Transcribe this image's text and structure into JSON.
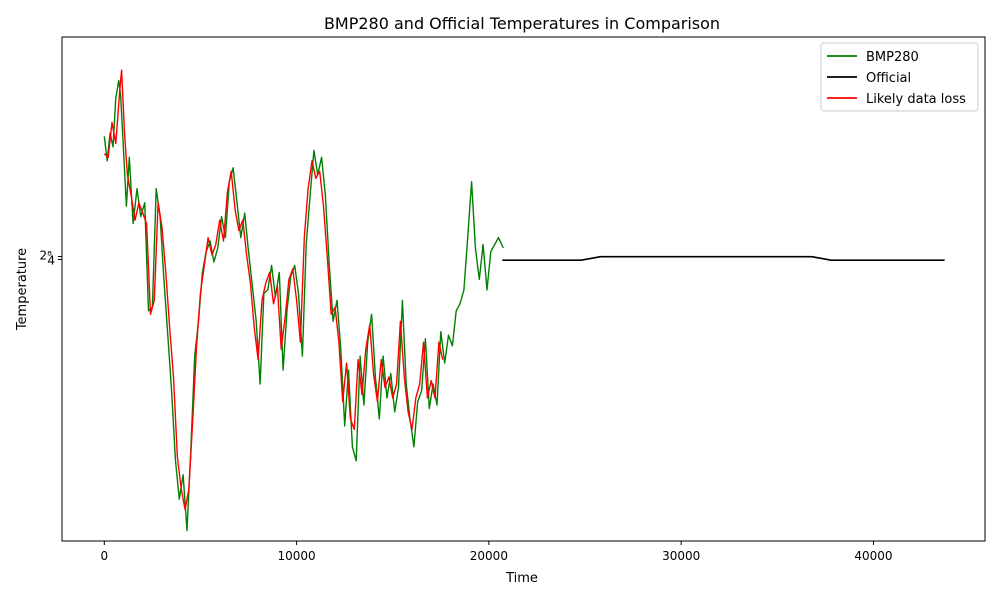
{
  "chart_data": {
    "type": "line",
    "title": "BMP280 and Official Temperatures in Comparison",
    "xlabel": "Time",
    "ylabel": "Temperature",
    "xlim": [
      -2200,
      45800
    ],
    "ylim": [
      -8.1,
      6.35
    ],
    "x_ticks": [
      0,
      10000,
      20000,
      30000,
      40000
    ],
    "x_tick_labels": [
      "0",
      "10000",
      "20000",
      "30000",
      "40000"
    ],
    "y_tick_labels": [
      "4",
      "2⁸"
    ],
    "y_tick_value": 0,
    "grid": false,
    "legend_position": "top-right",
    "series": [
      {
        "name": "BMP280",
        "color": "#008000",
        "x": [
          0,
          150,
          300,
          450,
          600,
          750,
          850,
          1000,
          1150,
          1300,
          1500,
          1700,
          1900,
          2100,
          2300,
          2500,
          2700,
          2900,
          3100,
          3300,
          3500,
          3700,
          3900,
          4100,
          4300,
          4500,
          4700,
          4900,
          5100,
          5300,
          5500,
          5700,
          5900,
          6100,
          6300,
          6500,
          6700,
          6900,
          7100,
          7300,
          7500,
          7700,
          7900,
          8100,
          8300,
          8500,
          8700,
          8900,
          9100,
          9300,
          9500,
          9700,
          9900,
          10100,
          10300,
          10500,
          10700,
          10900,
          11100,
          11300,
          11500,
          11700,
          11900,
          12100,
          12300,
          12500,
          12700,
          12900,
          13100,
          13300,
          13500,
          13700,
          13900,
          14100,
          14300,
          14500,
          14700,
          14900,
          15100,
          15300,
          15500,
          15700,
          15900,
          16100,
          16300,
          16500,
          16700,
          16900,
          17100,
          17300,
          17500,
          17700,
          17900,
          18100,
          18300,
          18500,
          18700,
          18900,
          19100,
          19300,
          19500,
          19700,
          19900,
          20100,
          20300,
          20500,
          20750
        ],
        "values": [
          3.5,
          2.8,
          3.6,
          3.2,
          4.6,
          5.1,
          4.7,
          3.1,
          1.5,
          2.9,
          1.0,
          2.0,
          1.2,
          1.6,
          -1.5,
          -1.4,
          2.0,
          1.2,
          -0.6,
          -2.2,
          -3.8,
          -5.8,
          -6.9,
          -6.2,
          -7.8,
          -5.5,
          -2.8,
          -1.8,
          -0.4,
          0.2,
          0.5,
          -0.1,
          0.3,
          1.2,
          0.6,
          2.2,
          2.6,
          1.6,
          0.6,
          1.3,
          0.2,
          -0.8,
          -1.8,
          -3.6,
          -1.0,
          -0.9,
          -0.2,
          -1.1,
          -0.4,
          -3.2,
          -1.5,
          -0.5,
          -0.2,
          -1.0,
          -2.8,
          0.4,
          1.8,
          3.1,
          2.4,
          2.9,
          1.8,
          -0.2,
          -1.8,
          -1.2,
          -2.6,
          -4.8,
          -3.2,
          -5.4,
          -5.8,
          -2.8,
          -4.2,
          -2.4,
          -1.6,
          -3.4,
          -4.6,
          -2.8,
          -4.0,
          -3.3,
          -4.4,
          -3.7,
          -1.2,
          -3.6,
          -4.6,
          -5.4,
          -4.1,
          -3.8,
          -2.3,
          -4.3,
          -3.6,
          -4.2,
          -2.1,
          -3.0,
          -2.2,
          -2.5,
          -1.5,
          -1.3,
          -0.9,
          0.6,
          2.2,
          0.3,
          -0.6,
          0.4,
          -0.9,
          0.2,
          0.4,
          0.6,
          0.3
        ],
        "values_note_unused": ""
      },
      {
        "name": "Official",
        "color": "#000000",
        "x": [
          20700,
          24800,
          25800,
          36800,
          37800,
          43700
        ],
        "values": [
          -0.05,
          -0.05,
          0.05,
          0.05,
          -0.05,
          -0.05
        ]
      },
      {
        "name": "Likely data loss",
        "color": "#ff0000",
        "x": [
          0,
          200,
          400,
          600,
          800,
          900,
          1050,
          1200,
          1400,
          1600,
          1800,
          2000,
          2200,
          2400,
          2600,
          2800,
          3000,
          3200,
          3400,
          3600,
          3800,
          4000,
          4200,
          4400,
          4600,
          4800,
          5000,
          5200,
          5400,
          5600,
          5800,
          6000,
          6200,
          6400,
          6600,
          6800,
          7000,
          7200,
          7400,
          7600,
          7800,
          8000,
          8200,
          8400,
          8600,
          8800,
          9000,
          9200,
          9400,
          9600,
          9800,
          10000,
          10200,
          10400,
          10600,
          10800,
          11000,
          11200,
          11400,
          11600,
          11800,
          12000,
          12200,
          12400,
          12600,
          12800,
          13000,
          13200,
          13400,
          13600,
          13800,
          14000,
          14200,
          14400,
          14600,
          14800,
          15000,
          15200,
          15400,
          15600,
          15800,
          16000,
          16200,
          16400,
          16600,
          16800,
          17000,
          17200,
          17400,
          17600
        ],
        "values": [
          3.0,
          2.9,
          3.9,
          3.3,
          4.8,
          5.4,
          3.6,
          2.4,
          1.8,
          1.1,
          1.6,
          1.3,
          1.0,
          -1.6,
          -1.2,
          1.6,
          0.9,
          -0.4,
          -2.0,
          -3.4,
          -5.7,
          -6.6,
          -7.2,
          -6.6,
          -4.6,
          -2.5,
          -1.0,
          -0.2,
          0.6,
          0.1,
          0.4,
          1.1,
          0.5,
          1.9,
          2.5,
          1.4,
          0.8,
          1.1,
          0.1,
          -0.7,
          -2.0,
          -2.9,
          -1.2,
          -0.7,
          -0.4,
          -1.3,
          -0.8,
          -2.6,
          -1.7,
          -0.6,
          -0.3,
          -1.2,
          -2.4,
          0.6,
          2.0,
          2.8,
          2.3,
          2.5,
          1.5,
          0.0,
          -1.6,
          -1.4,
          -2.4,
          -4.1,
          -3.0,
          -4.6,
          -4.9,
          -2.9,
          -3.9,
          -2.6,
          -1.9,
          -3.3,
          -4.1,
          -2.9,
          -3.7,
          -3.4,
          -4.0,
          -3.6,
          -1.8,
          -3.4,
          -4.4,
          -4.9,
          -4.0,
          -3.6,
          -2.4,
          -4.0,
          -3.5,
          -4.0,
          -2.4,
          -2.9
        ]
      }
    ]
  }
}
